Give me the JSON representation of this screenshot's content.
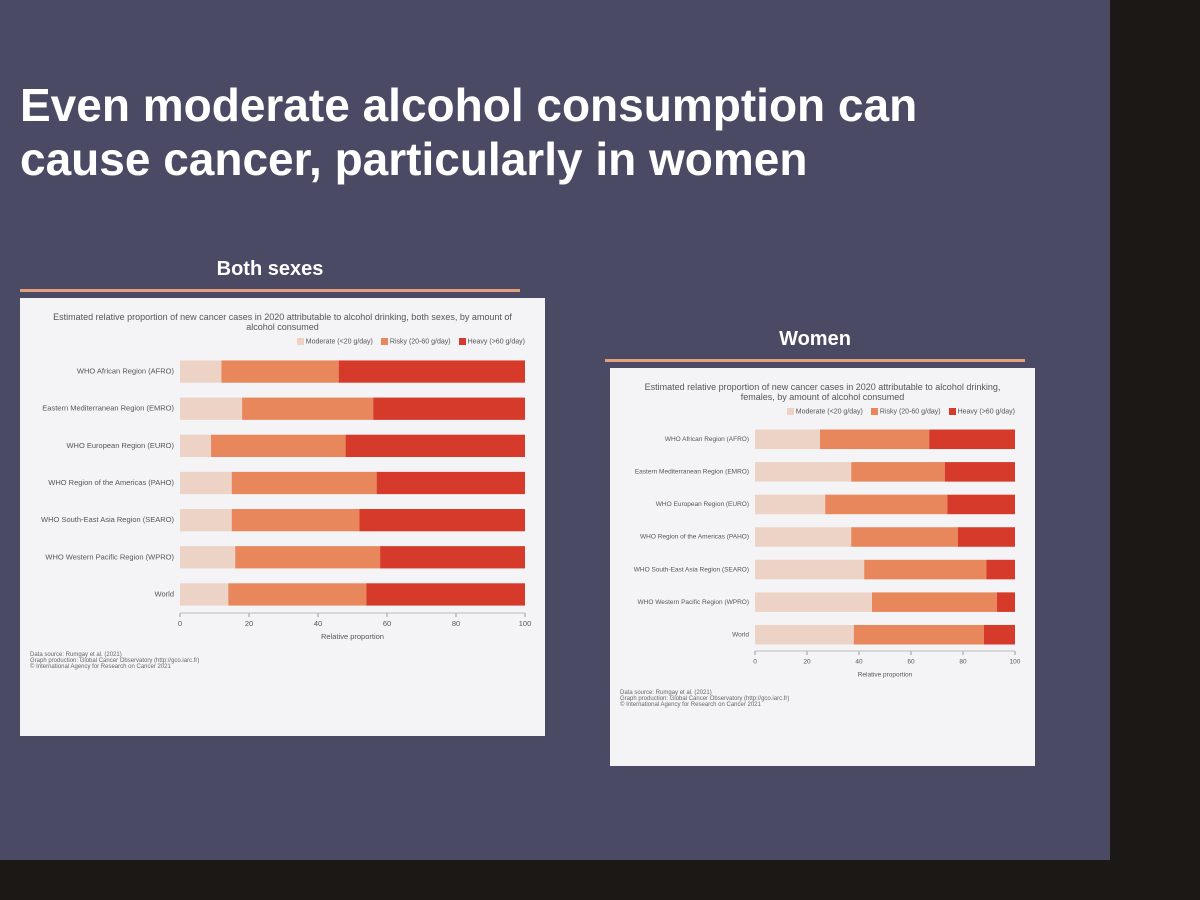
{
  "title": "Even moderate alcohol consumption can cause cancer, particularly in women",
  "chart_data": [
    {
      "type": "bar",
      "orientation": "horizontal",
      "stacked": true,
      "heading": "Both sexes",
      "title": "Estimated relative proportion of new cancer cases in 2020 attributable to alcohol drinking, both sexes, by amount of alcohol consumed",
      "categories": [
        "WHO African Region (AFRO)",
        "Eastern Mediterranean Region (EMRO)",
        "WHO European Region (EURO)",
        "WHO Region of the Americas (PAHO)",
        "WHO South-East Asia Region (SEARO)",
        "WHO Western Pacific Region (WPRO)",
        "World"
      ],
      "series": [
        {
          "name": "Moderate (<20 g/day)",
          "color": "#ecd3c6",
          "values": [
            12,
            18,
            9,
            15,
            15,
            16,
            14
          ]
        },
        {
          "name": "Risky (20-60 g/day)",
          "color": "#e8875c",
          "values": [
            34,
            38,
            39,
            42,
            37,
            42,
            40
          ]
        },
        {
          "name": "Heavy (>60 g/day)",
          "color": "#d63a2a",
          "values": [
            54,
            44,
            52,
            43,
            48,
            42,
            46
          ]
        }
      ],
      "xlabel": "Relative proportion",
      "xlim": [
        0,
        100
      ],
      "xticks": [
        0,
        20,
        40,
        60,
        80,
        100
      ],
      "source": [
        "Data source: Rumgay et al. (2021)",
        "Graph production: Global Cancer Observatory (http://gco.iarc.fr)",
        "© International Agency for Research on Cancer 2021"
      ]
    },
    {
      "type": "bar",
      "orientation": "horizontal",
      "stacked": true,
      "heading": "Women",
      "title": "Estimated relative proportion of new cancer cases in 2020 attributable to alcohol drinking, females, by amount of alcohol consumed",
      "categories": [
        "WHO African Region (AFRO)",
        "Eastern Mediterranean Region (EMRO)",
        "WHO European Region (EURO)",
        "WHO Region of the Americas (PAHO)",
        "WHO South-East Asia Region (SEARO)",
        "WHO Western Pacific Region (WPRO)",
        "World"
      ],
      "series": [
        {
          "name": "Moderate (<20 g/day)",
          "color": "#ecd3c6",
          "values": [
            25,
            37,
            27,
            37,
            42,
            45,
            38
          ]
        },
        {
          "name": "Risky (20-60 g/day)",
          "color": "#e8875c",
          "values": [
            42,
            36,
            47,
            41,
            47,
            48,
            50
          ]
        },
        {
          "name": "Heavy (>60 g/day)",
          "color": "#d63a2a",
          "values": [
            33,
            27,
            26,
            22,
            11,
            7,
            12
          ]
        }
      ],
      "xlabel": "Relative proportion",
      "xlim": [
        0,
        100
      ],
      "xticks": [
        0,
        20,
        40,
        60,
        80,
        100
      ],
      "source": [
        "Data source: Rumgay et al. (2021)",
        "Graph production: Global Cancer Observatory (http://gco.iarc.fr)",
        "© International Agency for Research on Cancer 2021"
      ]
    }
  ]
}
